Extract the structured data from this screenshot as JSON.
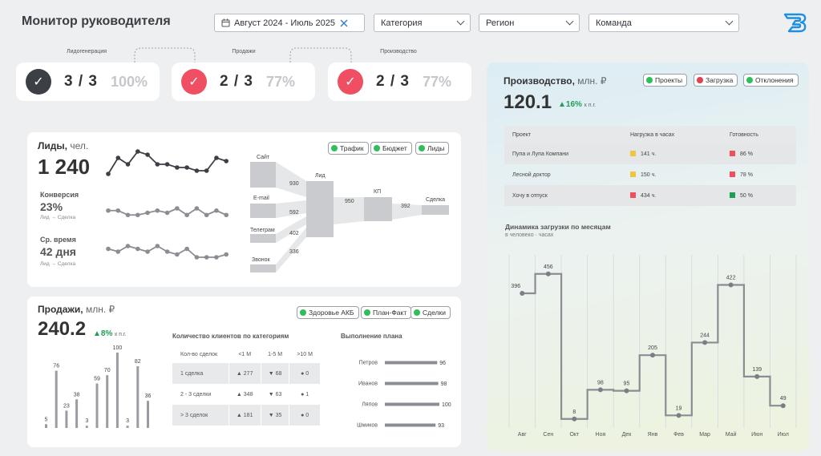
{
  "header": {
    "title": "Монитор руководителя",
    "date_filter": "Август 2024 - Июль 2025",
    "category_filter": "Категория",
    "region_filter": "Регион",
    "team_filter": "Команда"
  },
  "kpis": [
    {
      "label": "Лидогенерация",
      "value": "3 / 3",
      "percent": "100%",
      "status_color": "#3c4046"
    },
    {
      "label": "Продажи",
      "value": "2 / 3",
      "percent": "77%",
      "status_color": "#ef4e63"
    },
    {
      "label": "Производство",
      "value": "2 / 3",
      "percent": "77%",
      "status_color": "#ef4e63"
    }
  ],
  "leads": {
    "title": "Лиды,",
    "unit": "чел.",
    "value": "1 240",
    "chips": [
      "Трафик",
      "Бюджет",
      "Лиды"
    ],
    "conversion_label": "Конверсия",
    "conversion_value": "23%",
    "conversion_sub": "Лид → Сделка",
    "time_label": "Ср. время",
    "time_value": "42 дня",
    "time_sub": "Лид → Сделка",
    "sparkline_leads": [
      8,
      3,
      5,
      1,
      2,
      5,
      5,
      6,
      6,
      7,
      7,
      3,
      4
    ],
    "sparkline_conversion": [
      5,
      5,
      7,
      7,
      6,
      5,
      6,
      4,
      7,
      4,
      7,
      5,
      7
    ],
    "sparkline_time": [
      3,
      4,
      2,
      3,
      4,
      2,
      4,
      5,
      3,
      6,
      6,
      6,
      5
    ],
    "funnel": {
      "sources": [
        {
          "name": "Сайт",
          "value": "930"
        },
        {
          "name": "E-mail",
          "value": "592"
        },
        {
          "name": "Телеграм",
          "value": "402"
        },
        {
          "name": "Звонок",
          "value": "336"
        }
      ],
      "lead_label": "Лид",
      "lead_value": "950",
      "kp_label": "КП",
      "kp_value": "392",
      "deal_label": "Сделка"
    }
  },
  "sales": {
    "title": "Продажи,",
    "unit": "млн. ₽",
    "value": "240.2",
    "delta": "▲8%",
    "delta_sub": "к п.г.",
    "chips": [
      "Здоровье АКБ",
      "План-Факт",
      "Сделки"
    ],
    "bar_values": [
      5,
      76,
      23,
      38,
      3,
      59,
      70,
      100,
      3,
      82,
      36
    ],
    "clients_table": {
      "title": "Количество клиентов по категориям",
      "headers": [
        "Кол-во сделок",
        "<1 М",
        "1-5 М",
        ">10 М"
      ],
      "rows": [
        [
          "1 сделка",
          "▲ 277",
          "▼ 68",
          "● 0"
        ],
        [
          "2 - 3 сделки",
          "▲ 348",
          "▼ 63",
          "● 1"
        ],
        [
          "> 3 сделок",
          "▲ 181",
          "▼ 35",
          "● 0"
        ]
      ]
    },
    "plan": {
      "title": "Выполнение плана",
      "rows": [
        {
          "name": "Петров",
          "value": 96
        },
        {
          "name": "Иванов",
          "value": 98
        },
        {
          "name": "Ляпов",
          "value": 100
        },
        {
          "name": "Шмиков",
          "value": 93
        }
      ]
    }
  },
  "production": {
    "title": "Производство,",
    "unit": "млн. ₽",
    "value": "120.1",
    "delta": "▲16%",
    "delta_sub": "к п.г.",
    "chips": [
      "Проекты",
      "Загрузка",
      "Отклонения"
    ],
    "table": {
      "headers": [
        "Проект",
        "Нагрузка в часах",
        "Готовность"
      ],
      "rows": [
        {
          "project": "Пупа и Лупа Компани",
          "load": "141 ч.",
          "load_color": "#f0c542",
          "ready": "86 %",
          "ready_color": "#ef5060"
        },
        {
          "project": "Лесной доктор",
          "load": "150 ч.",
          "load_color": "#f0c542",
          "ready": "78 %",
          "ready_color": "#ef5060"
        },
        {
          "project": "Хочу в отпуск",
          "load": "434 ч.",
          "load_color": "#ef5060",
          "ready": "50 %",
          "ready_color": "#1f9e55"
        }
      ]
    },
    "chart_title": "Динамика загрузки по месяцам",
    "chart_subtitle": "в человеко · часах"
  },
  "chart_data": {
    "type": "line",
    "title": "Динамика загрузки по месяцам",
    "subtitle": "в человеко · часах",
    "categories": [
      "Авг",
      "Сен",
      "Окт",
      "Ноя",
      "Дек",
      "Янв",
      "Фев",
      "Мар",
      "Май",
      "Июн",
      "Июл"
    ],
    "values": [
      396,
      456,
      8,
      98,
      95,
      205,
      19,
      244,
      422,
      139,
      49
    ],
    "style": "step",
    "ylim": [
      0,
      500
    ]
  }
}
